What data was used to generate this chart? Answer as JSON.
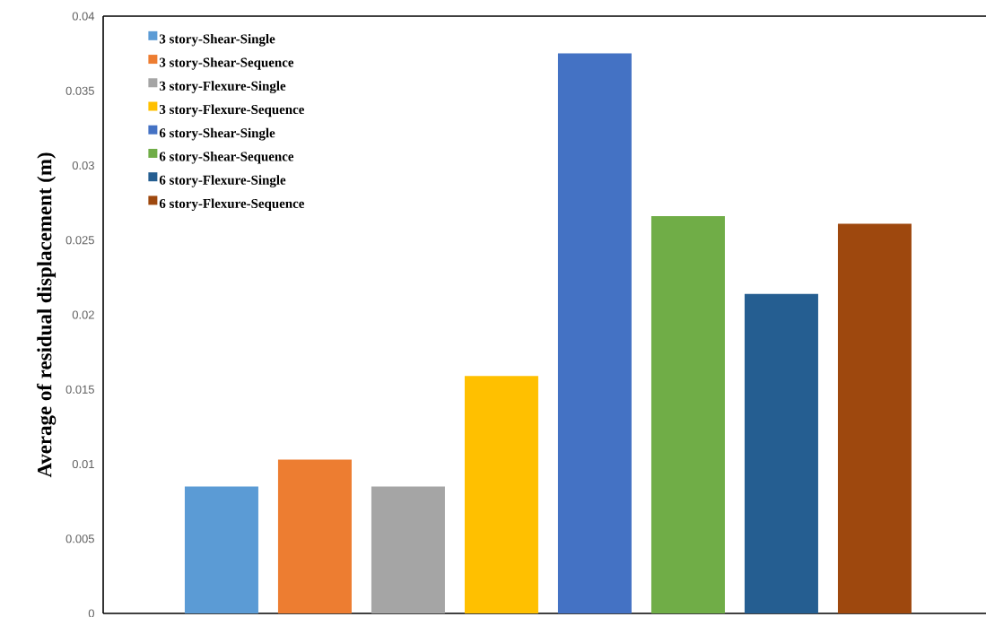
{
  "chart_data": {
    "type": "bar",
    "ylabel": "Average of residual displacement (m)",
    "categories": [
      null
    ],
    "series": [
      {
        "name": "3 story-Shear-Single",
        "color": "#5b9bd5",
        "values": [
          0.0085
        ]
      },
      {
        "name": "3 story-Shear-Sequence",
        "color": "#ed7d31",
        "values": [
          0.0103
        ]
      },
      {
        "name": "3 story-Flexure-Single",
        "color": "#a5a5a5",
        "values": [
          0.0085
        ]
      },
      {
        "name": "3 story-Flexure-Sequence",
        "color": "#ffc000",
        "values": [
          0.0159
        ]
      },
      {
        "name": "6 story-Shear-Single",
        "color": "#4472c4",
        "values": [
          0.0375
        ]
      },
      {
        "name": "6 story-Shear-Sequence",
        "color": "#70ad47",
        "values": [
          0.0266
        ]
      },
      {
        "name": "6 story-Flexure-Single",
        "color": "#255e91",
        "values": [
          0.0214
        ]
      },
      {
        "name": "6 story-Flexure-Sequence",
        "color": "#9e480e",
        "values": [
          0.0261
        ]
      }
    ],
    "ylim": [
      0,
      0.04
    ],
    "yticks": [
      0,
      0.005,
      0.01,
      0.015,
      0.02,
      0.025,
      0.03,
      0.035,
      0.04
    ],
    "legend": "top left",
    "tick_labels": "y"
  }
}
